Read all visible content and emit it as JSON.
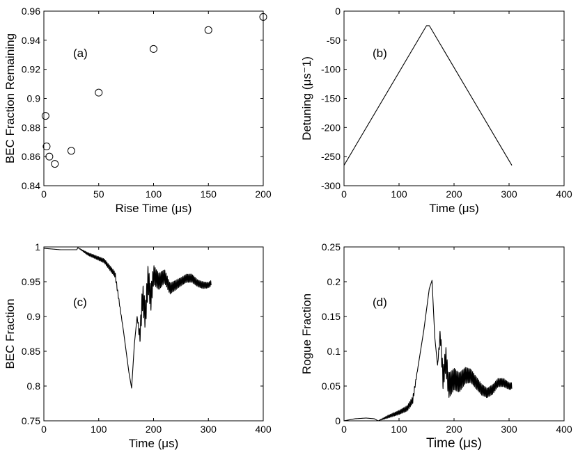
{
  "chart_data": [
    {
      "id": "a",
      "type": "scatter",
      "panel_label": "(a)",
      "xlabel": "Rise Time (μs)",
      "ylabel": "BEC Fraction Remaining",
      "xlim": [
        0,
        200
      ],
      "ylim": [
        0.84,
        0.96
      ],
      "xticks": [
        0,
        50,
        100,
        150,
        200
      ],
      "yticks": [
        0.84,
        0.86,
        0.88,
        0.9,
        0.92,
        0.94,
        0.96
      ],
      "xtick_labels": [
        "0",
        "50",
        "100",
        "150",
        "200"
      ],
      "ytick_labels": [
        "0.84",
        "0.86",
        "0.88",
        "0.9",
        "0.92",
        "0.94",
        "0.96"
      ],
      "x": [
        1.5,
        2.5,
        5,
        10,
        25,
        50,
        100,
        150,
        200
      ],
      "y": [
        0.888,
        0.867,
        0.86,
        0.855,
        0.864,
        0.904,
        0.934,
        0.947,
        0.956
      ],
      "marker": "open-circle"
    },
    {
      "id": "b",
      "type": "line",
      "panel_label": "(b)",
      "xlabel": "Time (μs)",
      "ylabel": "Detuning (μs⁻1)",
      "xlim": [
        0,
        400
      ],
      "ylim": [
        -300,
        0
      ],
      "xticks": [
        0,
        100,
        200,
        300,
        400
      ],
      "yticks": [
        -300,
        -250,
        -200,
        -150,
        -100,
        -50,
        0
      ],
      "xtick_labels": [
        "0",
        "100",
        "200",
        "300",
        "400"
      ],
      "ytick_labels": [
        "-300",
        "-250",
        "-200",
        "-150",
        "-100",
        "-50",
        "0"
      ],
      "series": [
        {
          "name": "detuning",
          "x": [
            0,
            150,
            155,
            305
          ],
          "y": [
            -265,
            -25,
            -25,
            -265
          ]
        }
      ]
    },
    {
      "id": "c",
      "type": "line",
      "panel_label": "(c)",
      "xlabel": "Time (μs)",
      "ylabel": "BEC Fraction",
      "xlim": [
        0,
        400
      ],
      "ylim": [
        0.75,
        1.0
      ],
      "xticks": [
        0,
        100,
        200,
        300,
        400
      ],
      "yticks": [
        0.75,
        0.8,
        0.85,
        0.9,
        0.95,
        1.0
      ],
      "xtick_labels": [
        "0",
        "100",
        "200",
        "300",
        "400"
      ],
      "ytick_labels": [
        "0.75",
        "0.8",
        "0.85",
        "0.9",
        "0.95",
        "1"
      ],
      "envelope_x": [
        0,
        30,
        60,
        62,
        80,
        110,
        130,
        145,
        155,
        160,
        165,
        170,
        175,
        180,
        185,
        190,
        195,
        200,
        210,
        220,
        230,
        240,
        250,
        260,
        270,
        280,
        290,
        300,
        305
      ],
      "envelope_y": [
        0.998,
        0.996,
        0.996,
        0.999,
        0.99,
        0.98,
        0.96,
        0.88,
        0.82,
        0.797,
        0.86,
        0.9,
        0.87,
        0.93,
        0.9,
        0.955,
        0.925,
        0.96,
        0.95,
        0.958,
        0.94,
        0.945,
        0.95,
        0.955,
        0.955,
        0.948,
        0.945,
        0.945,
        0.948
      ],
      "oscillation_amp": [
        0,
        0,
        0,
        0,
        0.002,
        0.003,
        0.004,
        0,
        0,
        0,
        0,
        0,
        0.01,
        0.02,
        0.02,
        0.02,
        0.018,
        0.014,
        0.012,
        0.01,
        0.008,
        0.007,
        0.006,
        0.006,
        0.006,
        0.005,
        0.005,
        0.004,
        0.004
      ]
    },
    {
      "id": "d",
      "type": "line",
      "panel_label": "(d)",
      "xlabel": "Time (μs)",
      "ylabel": "Rogue Fraction",
      "xlim": [
        0,
        400
      ],
      "ylim": [
        0,
        0.25
      ],
      "xticks": [
        0,
        100,
        200,
        300,
        400
      ],
      "yticks": [
        0,
        0.05,
        0.1,
        0.15,
        0.2,
        0.25
      ],
      "xtick_labels": [
        "0",
        "100",
        "200",
        "300",
        "400"
      ],
      "ytick_labels": [
        "0",
        "0.05",
        "0.1",
        "0.15",
        "0.2",
        "0.25"
      ],
      "envelope_x": [
        0,
        20,
        40,
        55,
        62,
        80,
        100,
        115,
        125,
        135,
        145,
        155,
        160,
        165,
        170,
        175,
        180,
        185,
        190,
        200,
        210,
        220,
        230,
        240,
        250,
        260,
        270,
        280,
        290,
        300,
        305
      ],
      "envelope_y": [
        0,
        0.003,
        0.004,
        0.003,
        0.0,
        0.006,
        0.012,
        0.018,
        0.03,
        0.08,
        0.13,
        0.19,
        0.202,
        0.12,
        0.08,
        0.125,
        0.06,
        0.09,
        0.05,
        0.06,
        0.055,
        0.065,
        0.065,
        0.055,
        0.045,
        0.04,
        0.045,
        0.055,
        0.055,
        0.05,
        0.05
      ],
      "oscillation_amp": [
        0,
        0,
        0,
        0,
        0,
        0.002,
        0.003,
        0.004,
        0.005,
        0,
        0,
        0,
        0,
        0,
        0,
        0.01,
        0.015,
        0.018,
        0.018,
        0.016,
        0.014,
        0.012,
        0.01,
        0.009,
        0.008,
        0.007,
        0.007,
        0.006,
        0.006,
        0.005,
        0.005
      ]
    }
  ]
}
